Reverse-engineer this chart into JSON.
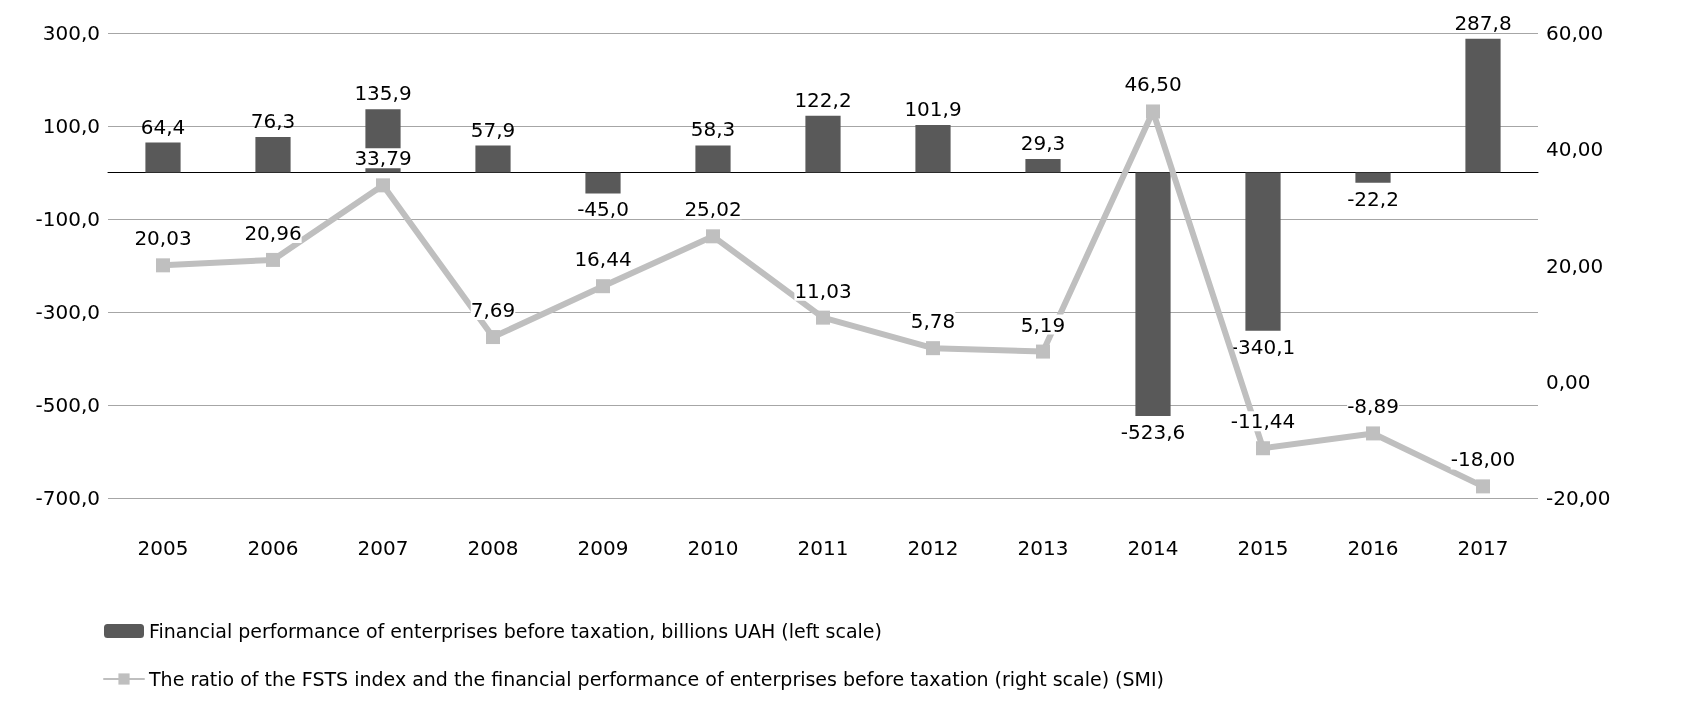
{
  "chart_data": {
    "type": "bar",
    "categories": [
      "2005",
      "2006",
      "2007",
      "2008",
      "2009",
      "2010",
      "2011",
      "2012",
      "2013",
      "2014",
      "2015",
      "2016",
      "2017"
    ],
    "series": [
      {
        "name": "Financial performance of enterprises before taxation, billions UAH (left scale)",
        "color": "#595959",
        "values": [
          64.4,
          76.3,
          135.9,
          57.9,
          -45.0,
          58.3,
          122.2,
          101.9,
          29.3,
          -523.6,
          -340.1,
          -22.2,
          287.8
        ],
        "value_labels": [
          "64,4",
          "76,3",
          "135,9",
          "57,9",
          "-45,0",
          "58,3",
          "122,2",
          "101,9",
          "29,3",
          "-523,6",
          "-340,1",
          "-22,2",
          "287,8"
        ]
      },
      {
        "type": "line",
        "axis": "y2",
        "name": "The ratio of the FSTS index and the financial performance of enterprises before taxation (right scale) (SMI)",
        "color": "#bfbfbf",
        "marker": "square",
        "values": [
          20.03,
          20.96,
          33.79,
          7.69,
          16.44,
          25.02,
          11.03,
          5.78,
          5.19,
          46.5,
          -11.44,
          -8.89,
          -18.0
        ],
        "value_labels": [
          "20,03",
          "20,96",
          "33,79",
          "7,69",
          "16,44",
          "25,02",
          "11,03",
          "5,78",
          "5,19",
          "46,50",
          "-11,44",
          "-8,89",
          "-18,00"
        ]
      }
    ],
    "ylim": [
      -700,
      300
    ],
    "yticks": [
      {
        "value": -700,
        "label": "-700,0"
      },
      {
        "value": -500,
        "label": "-500,0"
      },
      {
        "value": -300,
        "label": "-300,0"
      },
      {
        "value": -100,
        "label": "-100,0"
      },
      {
        "value": 100,
        "label": "100,0"
      },
      {
        "value": 300,
        "label": "300,0"
      }
    ],
    "y2lim": [
      -20,
      60
    ],
    "y2ticks": [
      {
        "value": -20,
        "label": "-20,00"
      },
      {
        "value": 0,
        "label": "0,00"
      },
      {
        "value": 20,
        "label": "20,00"
      },
      {
        "value": 40,
        "label": "40,00"
      },
      {
        "value": 60,
        "label": "60,00"
      }
    ],
    "grid": "y",
    "legend": "bottom"
  }
}
